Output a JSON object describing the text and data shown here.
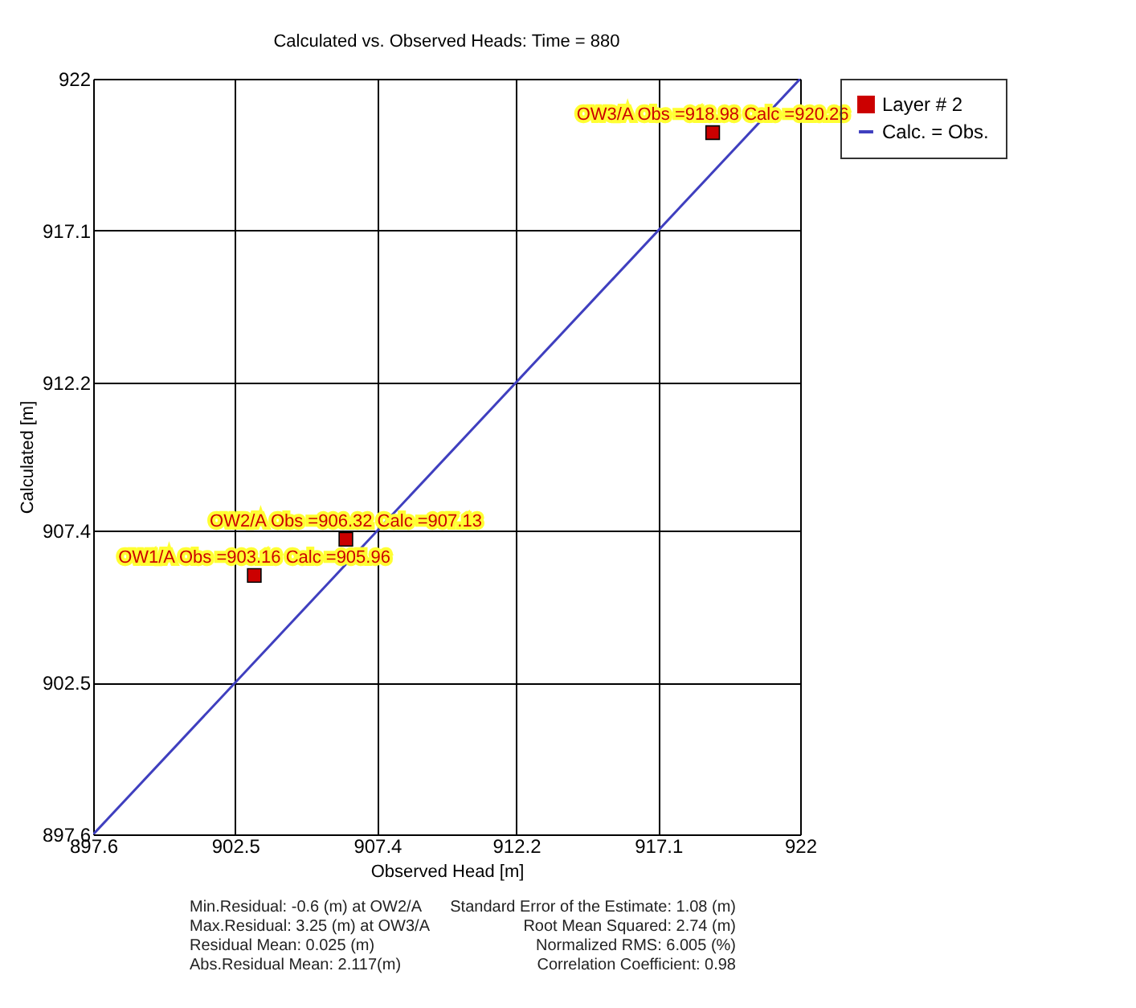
{
  "chart_data": {
    "type": "scatter",
    "title": "Calculated vs. Observed Heads: Time = 880",
    "xlabel": "Observed Head [m]",
    "ylabel": "Calculated [m]",
    "series": [
      {
        "name": "Layer # 2",
        "color": "#cc0000",
        "marker": "square",
        "x": [
          903.16,
          906.32,
          918.98
        ],
        "values": [
          905.96,
          907.13,
          920.26
        ]
      },
      {
        "name": "Calc. = Obs.",
        "type": "line",
        "color": "#3f3fbf",
        "marker": "none",
        "line_style": "solid",
        "x": [
          897.6,
          922
        ],
        "values": [
          897.6,
          922
        ]
      }
    ],
    "xlim": [
      897.6,
      922
    ],
    "ylim": [
      897.6,
      922
    ],
    "xticks": [
      897.6,
      902.5,
      907.4,
      912.2,
      917.1,
      922
    ],
    "yticks": [
      897.6,
      902.5,
      907.4,
      912.2,
      917.1,
      922
    ],
    "grid": true,
    "legend": "top right",
    "annotations": [
      {
        "text": "OW1/A Obs =903.16 Calc =905.96",
        "x": 903.16,
        "y": 905.96
      },
      {
        "text": "OW2/A Obs =906.32 Calc =907.13",
        "x": 906.32,
        "y": 907.13
      },
      {
        "text": "OW3/A Obs =918.98 Calc =920.26",
        "x": 918.98,
        "y": 920.26
      },
      "Min.Residual: -0.6 (m) at OW2/A",
      "Max.Residual: 3.25 (m) at OW3/A",
      "Residual Mean: 0.025 (m)",
      "Abs.Residual Mean: 2.117(m)",
      "Standard Error of the Estimate: 1.08 (m)",
      "Root Mean Squared: 2.74 (m)",
      "Normalized RMS: 6.005 (%)",
      "Correlation Coefficient: 0.98"
    ]
  }
}
